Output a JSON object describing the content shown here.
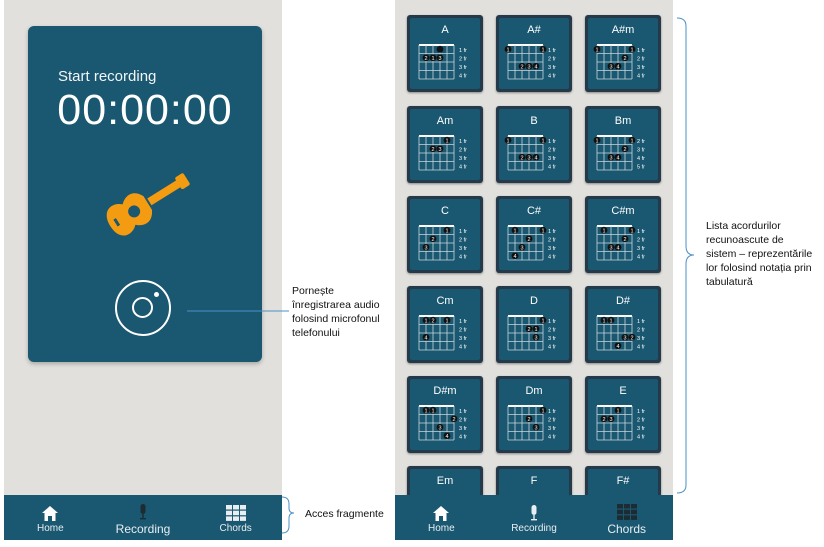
{
  "recording_screen": {
    "title": "Start recording",
    "timer": "00:00:00"
  },
  "nav": {
    "home": "Home",
    "recording": "Recording",
    "chords": "Chords"
  },
  "chords": [
    {
      "name": "A",
      "fr": [
        "1 fr",
        "2 fr",
        "3 fr",
        "4 fr"
      ],
      "dots": [
        [
          3,
          0,
          ""
        ],
        [
          1,
          1,
          "2"
        ],
        [
          2,
          1,
          "1"
        ],
        [
          3,
          1,
          "3"
        ]
      ]
    },
    {
      "name": "A#",
      "fr": [
        "1 fr",
        "2 fr",
        "3 fr",
        "4 fr"
      ],
      "dots": [
        [
          0,
          0,
          "1"
        ],
        [
          5,
          0,
          "1"
        ],
        [
          2,
          2,
          "2"
        ],
        [
          3,
          2,
          "3"
        ],
        [
          4,
          2,
          "4"
        ]
      ]
    },
    {
      "name": "A#m",
      "fr": [
        "1 fr",
        "2 fr",
        "3 fr",
        "4 fr"
      ],
      "dots": [
        [
          0,
          0,
          "1"
        ],
        [
          5,
          0,
          "1"
        ],
        [
          4,
          1,
          "2"
        ],
        [
          2,
          2,
          "3"
        ],
        [
          3,
          2,
          "4"
        ]
      ]
    },
    {
      "name": "Am",
      "fr": [
        "1 fr",
        "2 fr",
        "3 fr",
        "4 fr"
      ],
      "dots": [
        [
          4,
          0,
          "1"
        ],
        [
          2,
          1,
          "2"
        ],
        [
          3,
          1,
          "3"
        ]
      ]
    },
    {
      "name": "B",
      "fr": [
        "1 fr",
        "2 fr",
        "3 fr",
        "4 fr"
      ],
      "dots": [
        [
          0,
          0,
          "1"
        ],
        [
          5,
          0,
          "1"
        ],
        [
          2,
          2,
          "2"
        ],
        [
          3,
          2,
          "3"
        ],
        [
          4,
          2,
          "4"
        ]
      ]
    },
    {
      "name": "Bm",
      "fr": [
        "2 fr",
        "3 fr",
        "4 fr",
        "5 fr"
      ],
      "dots": [
        [
          0,
          0,
          "1"
        ],
        [
          5,
          0,
          "1"
        ],
        [
          4,
          1,
          "2"
        ],
        [
          2,
          2,
          "3"
        ],
        [
          3,
          2,
          "4"
        ]
      ]
    },
    {
      "name": "C",
      "fr": [
        "1 fr",
        "2 fr",
        "3 fr",
        "4 fr"
      ],
      "dots": [
        [
          4,
          0,
          "1"
        ],
        [
          2,
          1,
          "2"
        ],
        [
          1,
          2,
          "3"
        ]
      ]
    },
    {
      "name": "C#",
      "fr": [
        "1 fr",
        "2 fr",
        "3 fr",
        "4 fr"
      ],
      "dots": [
        [
          1,
          0,
          "1"
        ],
        [
          5,
          0,
          "1"
        ],
        [
          3,
          1,
          "2"
        ],
        [
          2,
          2,
          "3"
        ],
        [
          1,
          3,
          "4"
        ]
      ]
    },
    {
      "name": "C#m",
      "fr": [
        "1 fr",
        "2 fr",
        "3 fr",
        "4 fr"
      ],
      "dots": [
        [
          1,
          0,
          "1"
        ],
        [
          5,
          0,
          "1"
        ],
        [
          4,
          1,
          "2"
        ],
        [
          2,
          2,
          "3"
        ],
        [
          3,
          2,
          "4"
        ]
      ]
    },
    {
      "name": "Cm",
      "fr": [
        "1 fr",
        "2 fr",
        "3 fr",
        "4 fr"
      ],
      "dots": [
        [
          1,
          0,
          "1"
        ],
        [
          4,
          0,
          "1"
        ],
        [
          2,
          0,
          "2"
        ],
        [
          1,
          2,
          "4"
        ]
      ]
    },
    {
      "name": "D",
      "fr": [
        "1 fr",
        "2 fr",
        "3 fr",
        "4 fr"
      ],
      "dots": [
        [
          5,
          0,
          "1"
        ],
        [
          3,
          1,
          "2"
        ],
        [
          4,
          1,
          "1"
        ],
        [
          4,
          2,
          "3"
        ]
      ]
    },
    {
      "name": "D#",
      "fr": [
        "1 fr",
        "2 fr",
        "3 fr",
        "4 fr"
      ],
      "dots": [
        [
          1,
          0,
          "1"
        ],
        [
          2,
          0,
          "1"
        ],
        [
          5,
          2,
          "2"
        ],
        [
          4,
          2,
          "3"
        ],
        [
          3,
          3,
          "4"
        ]
      ]
    },
    {
      "name": "D#m",
      "fr": [
        "1 fr",
        "2 fr",
        "3 fr",
        "4 fr"
      ],
      "dots": [
        [
          1,
          0,
          "1"
        ],
        [
          2,
          0,
          "1"
        ],
        [
          5,
          1,
          "2"
        ],
        [
          3,
          2,
          "3"
        ],
        [
          4,
          3,
          "4"
        ]
      ]
    },
    {
      "name": "Dm",
      "fr": [
        "1 fr",
        "2 fr",
        "3 fr",
        "4 fr"
      ],
      "dots": [
        [
          5,
          0,
          "1"
        ],
        [
          3,
          1,
          "2"
        ],
        [
          4,
          2,
          "3"
        ]
      ]
    },
    {
      "name": "E",
      "fr": [
        "1 fr",
        "2 fr",
        "3 fr",
        "4 fr"
      ],
      "dots": [
        [
          3,
          0,
          "1"
        ],
        [
          1,
          1,
          "2"
        ],
        [
          2,
          1,
          "3"
        ]
      ]
    },
    {
      "name": "Em",
      "fr": [],
      "dots": []
    },
    {
      "name": "F",
      "fr": [],
      "dots": []
    },
    {
      "name": "F#",
      "fr": [],
      "dots": []
    }
  ],
  "annotations": {
    "record": "Pornește înregistrarea audio folosind microfonul telefonului",
    "nav": "Acces fragmente",
    "chords": "Lista acordurilor recunoascute de sistem – reprezentările lor folosind notația prin tabulatură"
  },
  "colors": {
    "primary": "#1a5770",
    "accent": "#f39c12",
    "background": "#e2e0dc"
  }
}
